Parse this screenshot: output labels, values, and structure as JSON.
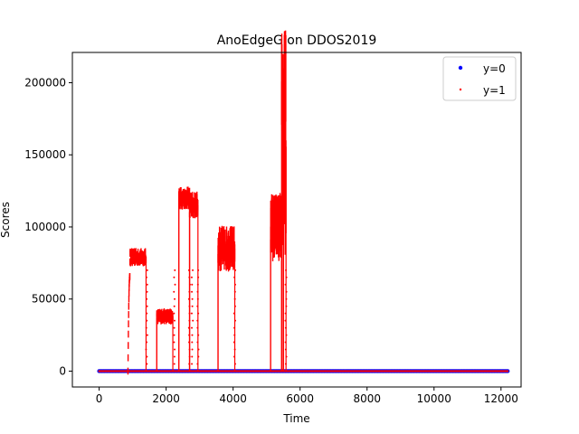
{
  "chart_data": {
    "type": "scatter",
    "title": "AnoEdgeG on DDOS2019",
    "xlabel": "Time",
    "ylabel": "Scores",
    "xlim": [
      -800,
      12600
    ],
    "ylim": [
      -11000,
      221000
    ],
    "xticks": [
      0,
      2000,
      4000,
      6000,
      8000,
      10000,
      12000
    ],
    "xtick_labels": [
      "0",
      "2000",
      "4000",
      "6000",
      "8000",
      "10000",
      "12000"
    ],
    "yticks": [
      0,
      50000,
      100000,
      150000,
      200000
    ],
    "ytick_labels": [
      "0",
      "50000",
      "100000",
      "150000",
      "200000"
    ],
    "grid": false,
    "legend_position": "top-right",
    "series": [
      {
        "name": "y=0",
        "color": "#0000ff",
        "marker": "dot-large",
        "x_range": [
          0,
          12200
        ],
        "y_value": 0
      },
      {
        "name": "y=1",
        "color": "#ff0000",
        "marker": "dot-small",
        "baseline": {
          "x_range": [
            0,
            12200
          ],
          "y_value": 0
        },
        "segments": [
          {
            "x_start": 860,
            "x_end": 1400,
            "level": 79000,
            "amp": 4000,
            "ramp_to": 65000
          },
          {
            "x_start": 1720,
            "x_end": 2200,
            "level": 38000,
            "amp": 3500
          },
          {
            "x_start": 2380,
            "x_end": 2700,
            "level": 120000,
            "amp": 5000
          },
          {
            "x_start": 2700,
            "x_end": 2950,
            "level": 115000,
            "amp": 6000
          },
          {
            "x_start": 3550,
            "x_end": 4050,
            "level": 85000,
            "amp": 10000
          },
          {
            "x_start": 5120,
            "x_end": 5450,
            "level": 100000,
            "amp": 15000
          },
          {
            "x_start": 5450,
            "x_end": 5580,
            "level": 160000,
            "amp": 50000
          }
        ],
        "drops": [
          1420,
          2250,
          2700,
          2780,
          2950,
          4050,
          5580
        ]
      }
    ]
  }
}
